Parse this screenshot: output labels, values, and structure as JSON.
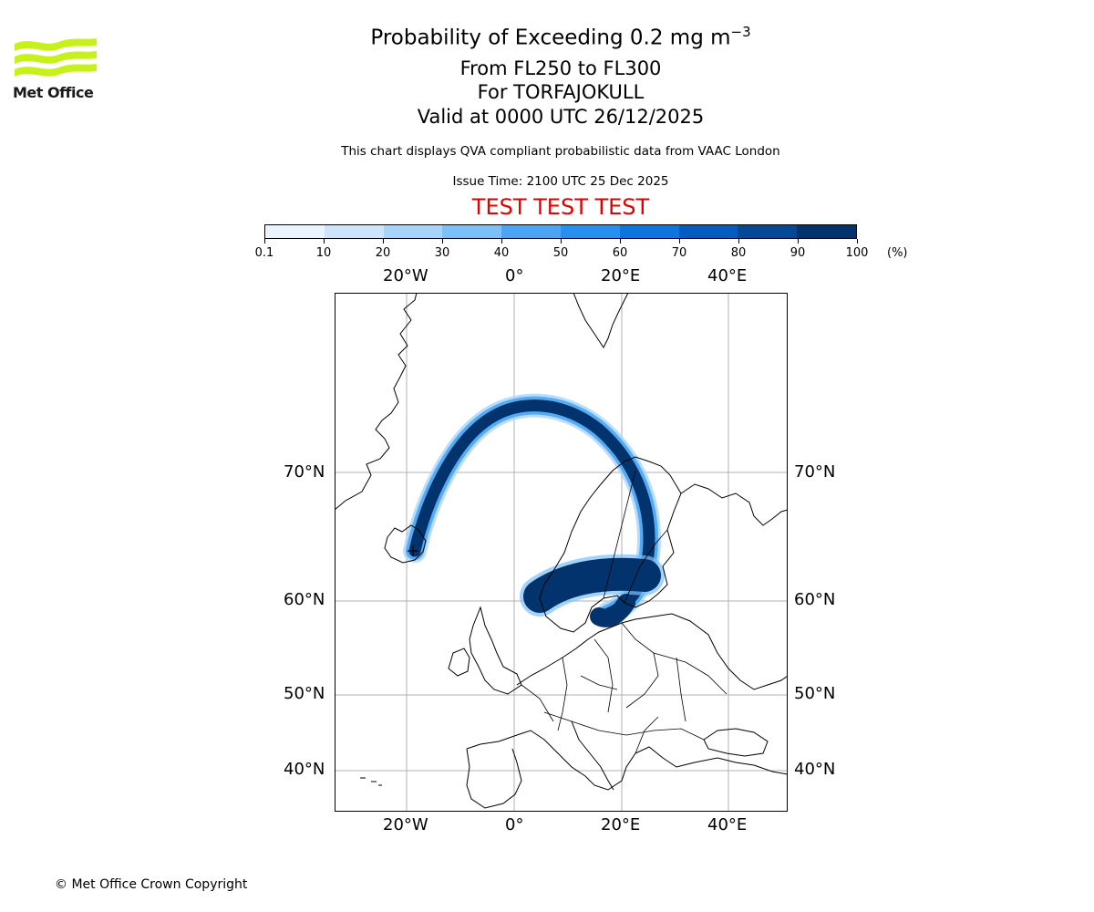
{
  "logo": {
    "text": "Met Office",
    "color": "#c6f11b"
  },
  "title": {
    "main": "Probability of Exceeding 0.2 mg m",
    "main_superscript": "−3",
    "flight_levels": "From FL250 to FL300",
    "volcano": "For TORFAJOKULL",
    "valid": "Valid at 0000 UTC 26/12/2025",
    "description": "This chart displays QVA compliant probabilistic data from VAAC London",
    "issue_time": "Issue Time: 2100 UTC 25 Dec 2025",
    "test_banner": "TEST TEST TEST",
    "test_color": "#e00000"
  },
  "colorbar": {
    "ticks": [
      "0.1",
      "10",
      "20",
      "30",
      "40",
      "50",
      "60",
      "70",
      "80",
      "90",
      "100"
    ],
    "unit": "(%)",
    "colors": [
      "#eaf4ff",
      "#cce5fb",
      "#a8d4fa",
      "#7cc0f8",
      "#4aa6f5",
      "#2590f0",
      "#0d76dd",
      "#055cc0",
      "#044896",
      "#02336c"
    ]
  },
  "map": {
    "lon_labels": [
      "20°W",
      "0°",
      "20°E",
      "40°E"
    ],
    "lat_labels": [
      "70°N",
      "60°N",
      "50°N",
      "40°N"
    ],
    "extent": {
      "lon": [
        -34,
        51
      ],
      "lat": [
        35.5,
        83
      ]
    },
    "source_volcano": "TORFAJOKULL",
    "plume_color": "#02336c"
  },
  "copyright": "© Met Office Crown Copyright"
}
